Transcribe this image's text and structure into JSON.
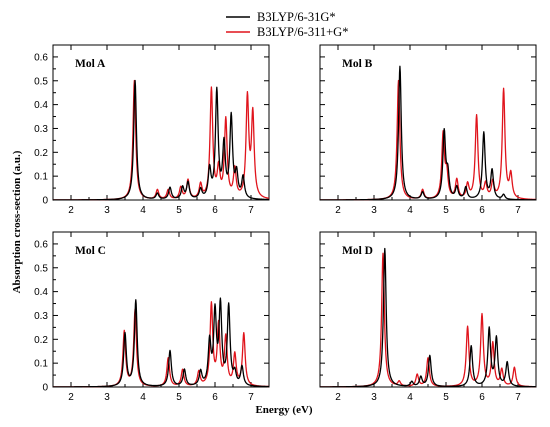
{
  "chart_data": {
    "type": "line",
    "xlabel": "Energy (eV)",
    "ylabel": "Absorption cross-section (a.u.)",
    "xlim": [
      1.5,
      7.5
    ],
    "ylim": [
      0,
      0.65
    ],
    "xticks": [
      "2",
      "3",
      "4",
      "5",
      "6",
      "7"
    ],
    "yticks": [
      "0",
      "0.1",
      "0.2",
      "0.3",
      "0.4",
      "0.5",
      "0.6"
    ],
    "legend": {
      "placement": "top-center",
      "entries": [
        {
          "label": "B3LYP/6-31G*",
          "color": "#000000"
        },
        {
          "label": "B3LYP/6-311+G*",
          "color": "#e0141c"
        }
      ]
    },
    "line_shape": "lorentzian",
    "half_width_ev": 0.045,
    "panels": [
      {
        "title": "Mol A",
        "series": [
          {
            "name": "B3LYP/6-31G*",
            "color": "#000000",
            "peaks": [
              [
                3.78,
                0.5
              ],
              [
                4.4,
                0.025
              ],
              [
                4.75,
                0.05
              ],
              [
                5.1,
                0.05
              ],
              [
                5.25,
                0.07
              ],
              [
                5.6,
                0.04
              ],
              [
                5.85,
                0.12
              ],
              [
                6.05,
                0.45
              ],
              [
                6.25,
                0.22
              ],
              [
                6.45,
                0.34
              ],
              [
                6.6,
                0.1
              ],
              [
                6.78,
                0.09
              ]
            ]
          },
          {
            "name": "B3LYP/6-311+G*",
            "color": "#e0141c",
            "peaks": [
              [
                3.76,
                0.5
              ],
              [
                4.4,
                0.04
              ],
              [
                4.7,
                0.04
              ],
              [
                5.05,
                0.05
              ],
              [
                5.25,
                0.08
              ],
              [
                5.6,
                0.06
              ],
              [
                5.9,
                0.46
              ],
              [
                6.1,
                0.12
              ],
              [
                6.3,
                0.33
              ],
              [
                6.55,
                0.12
              ],
              [
                6.9,
                0.42
              ],
              [
                7.05,
                0.35
              ]
            ]
          }
        ]
      },
      {
        "title": "Mol B",
        "series": [
          {
            "name": "B3LYP/6-31G*",
            "color": "#000000",
            "peaks": [
              [
                3.72,
                0.56
              ],
              [
                4.35,
                0.03
              ],
              [
                4.95,
                0.28
              ],
              [
                5.05,
                0.1
              ],
              [
                5.3,
                0.05
              ],
              [
                5.55,
                0.05
              ],
              [
                6.05,
                0.28
              ],
              [
                6.28,
                0.12
              ],
              [
                6.6,
                0.02
              ]
            ]
          },
          {
            "name": "B3LYP/6-311+G*",
            "color": "#e0141c",
            "peaks": [
              [
                3.68,
                0.5
              ],
              [
                4.35,
                0.04
              ],
              [
                4.92,
                0.27
              ],
              [
                5.02,
                0.1
              ],
              [
                5.3,
                0.08
              ],
              [
                5.6,
                0.06
              ],
              [
                5.85,
                0.35
              ],
              [
                6.1,
                0.06
              ],
              [
                6.3,
                0.07
              ],
              [
                6.6,
                0.46
              ],
              [
                6.8,
                0.1
              ]
            ]
          }
        ]
      },
      {
        "title": "Mol C",
        "series": [
          {
            "name": "B3LYP/6-31G*",
            "color": "#000000",
            "peaks": [
              [
                3.5,
                0.22
              ],
              [
                3.8,
                0.36
              ],
              [
                4.75,
                0.15
              ],
              [
                5.15,
                0.07
              ],
              [
                5.6,
                0.06
              ],
              [
                5.85,
                0.18
              ],
              [
                6.0,
                0.3
              ],
              [
                6.15,
                0.33
              ],
              [
                6.38,
                0.33
              ],
              [
                6.55,
                0.05
              ],
              [
                6.75,
                0.08
              ]
            ]
          },
          {
            "name": "B3LYP/6-311+G*",
            "color": "#e0141c",
            "peaks": [
              [
                3.48,
                0.23
              ],
              [
                3.78,
                0.32
              ],
              [
                4.7,
                0.12
              ],
              [
                5.1,
                0.07
              ],
              [
                5.55,
                0.06
              ],
              [
                5.9,
                0.34
              ],
              [
                6.1,
                0.25
              ],
              [
                6.3,
                0.2
              ],
              [
                6.55,
                0.13
              ],
              [
                6.8,
                0.22
              ]
            ]
          }
        ]
      },
      {
        "title": "Mol D",
        "series": [
          {
            "name": "B3LYP/6-31G*",
            "color": "#000000",
            "peaks": [
              [
                3.3,
                0.58
              ],
              [
                4.05,
                0.02
              ],
              [
                4.3,
                0.04
              ],
              [
                4.55,
                0.13
              ],
              [
                5.7,
                0.17
              ],
              [
                6.2,
                0.24
              ],
              [
                6.4,
                0.2
              ],
              [
                6.7,
                0.1
              ]
            ]
          },
          {
            "name": "B3LYP/6-311+G*",
            "color": "#e0141c",
            "peaks": [
              [
                3.25,
                0.56
              ],
              [
                3.7,
                0.02
              ],
              [
                4.2,
                0.05
              ],
              [
                4.5,
                0.12
              ],
              [
                5.6,
                0.25
              ],
              [
                6.0,
                0.3
              ],
              [
                6.3,
                0.18
              ],
              [
                6.55,
                0.07
              ],
              [
                6.9,
                0.08
              ]
            ]
          }
        ]
      }
    ]
  }
}
